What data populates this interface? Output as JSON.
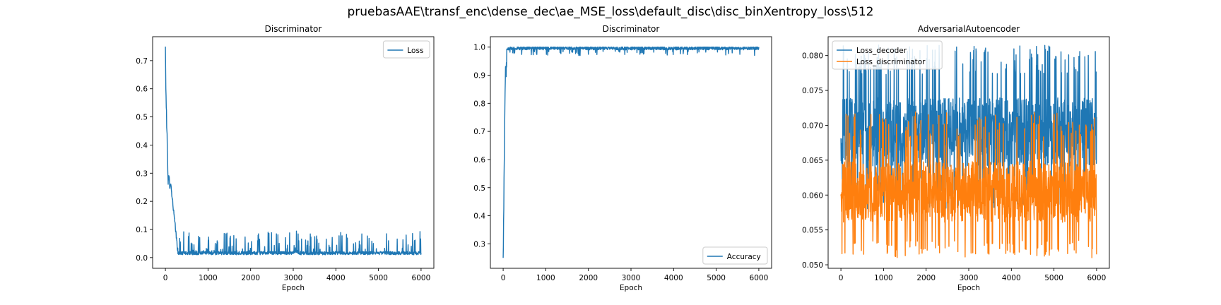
{
  "figure": {
    "suptitle": "pruebasAAE\\transf_enc\\dense_dec\\ae_MSE_loss\\default_disc\\disc_binXentropy_loss\\512"
  },
  "colors": {
    "series_blue": "#1f77b4",
    "series_orange": "#ff7f0e",
    "axes_frame": "#000000",
    "legend_border": "#cccccc",
    "background": "#ffffff"
  },
  "chart_data": [
    {
      "type": "line",
      "title": "Discriminator",
      "xlabel": "Epoch",
      "ylabel": "",
      "xlim": [
        -300,
        6300
      ],
      "ylim": [
        -0.038,
        0.785
      ],
      "xticks": [
        0,
        1000,
        2000,
        3000,
        4000,
        5000,
        6000
      ],
      "yticks": [
        0.0,
        0.1,
        0.2,
        0.3,
        0.4,
        0.5,
        0.6,
        0.7
      ],
      "ytick_decimals": 1,
      "grid": false,
      "legend": {
        "location": "upper right"
      },
      "series": [
        {
          "name": "Loss",
          "color": "#1f77b4",
          "x_start": 0,
          "x_end": 6000,
          "profile": {
            "initial_peak": 0.75,
            "plateau_at_200": 0.27,
            "baseline_from_epoch_300": 0.01,
            "noise_spikes_max": 0.09
          }
        }
      ]
    },
    {
      "type": "line",
      "title": "Discriminator",
      "xlabel": "Epoch",
      "ylabel": "",
      "xlim": [
        -300,
        6300
      ],
      "ylim": [
        0.213,
        1.037
      ],
      "xticks": [
        0,
        1000,
        2000,
        3000,
        4000,
        5000,
        6000
      ],
      "yticks": [
        0.3,
        0.4,
        0.5,
        0.6,
        0.7,
        0.8,
        0.9,
        1.0
      ],
      "ytick_decimals": 1,
      "grid": false,
      "legend": {
        "location": "lower right"
      },
      "series": [
        {
          "name": "Accuracy",
          "color": "#1f77b4",
          "x_start": 0,
          "x_end": 6000,
          "profile": {
            "initial_value": 0.25,
            "ramp_to_epoch": 50,
            "baseline_after_epoch_80": 0.99,
            "dip_min": 0.97,
            "max": 1.0
          }
        }
      ]
    },
    {
      "type": "line",
      "title": "AdversarialAutoencoder",
      "xlabel": "Epoch",
      "ylabel": "",
      "xlim": [
        -300,
        6300
      ],
      "ylim": [
        0.0495,
        0.0827
      ],
      "xticks": [
        0,
        1000,
        2000,
        3000,
        4000,
        5000,
        6000
      ],
      "yticks": [
        0.05,
        0.055,
        0.06,
        0.065,
        0.07,
        0.075,
        0.08
      ],
      "ytick_decimals": 3,
      "grid": false,
      "legend": {
        "location": "upper left"
      },
      "series": [
        {
          "name": "Loss_decoder",
          "color": "#1f77b4",
          "x_start": 0,
          "x_end": 6000,
          "profile": {
            "center": 0.069,
            "band_min": 0.058,
            "band_max": 0.0815
          }
        },
        {
          "name": "Loss_discriminator",
          "color": "#ff7f0e",
          "x_start": 0,
          "x_end": 6000,
          "profile": {
            "center": 0.0605,
            "band_min": 0.051,
            "band_max": 0.072
          }
        }
      ]
    }
  ]
}
